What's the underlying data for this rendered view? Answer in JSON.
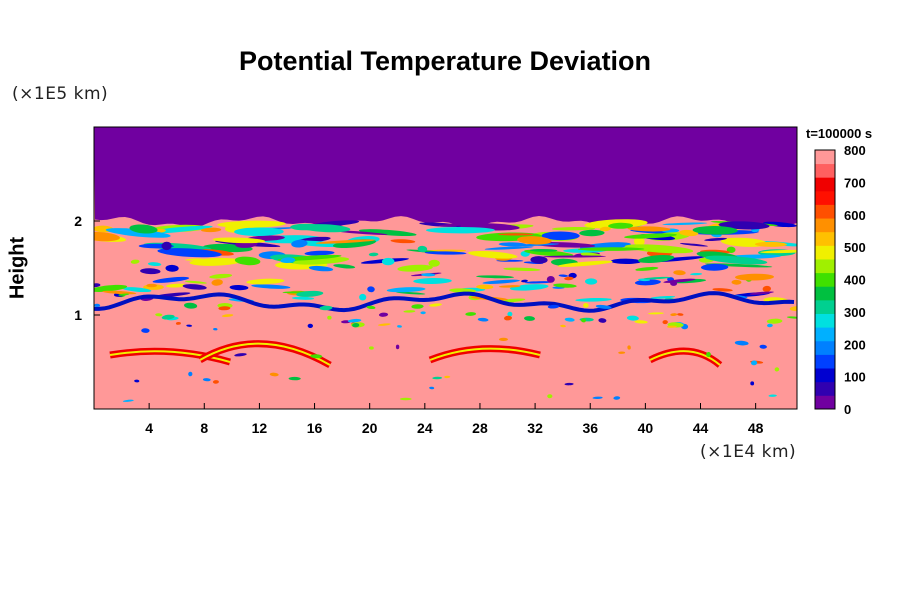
{
  "chart_data": {
    "type": "heatmap",
    "title": "Potential Temperature Deviation",
    "ylabel": "Height",
    "y_unit": "(×1E5 km)",
    "x_unit": "(×1E4 km)",
    "time_label": "t=100000 s",
    "xlim": [
      0,
      51
    ],
    "ylim": [
      0,
      3
    ],
    "x_ticks": [
      "4",
      "8",
      "12",
      "16",
      "20",
      "24",
      "28",
      "32",
      "36",
      "40",
      "44",
      "48"
    ],
    "y_ticks": [
      "1",
      "2"
    ],
    "colorbar": {
      "min": 0,
      "max": 800,
      "tick_labels": [
        "0",
        "100",
        "200",
        "300",
        "400",
        "500",
        "600",
        "700",
        "800"
      ],
      "colors": [
        "#7000a0",
        "#3000b0",
        "#0000d0",
        "#0040ff",
        "#0080ff",
        "#00b0ff",
        "#00e0e0",
        "#00d090",
        "#00c040",
        "#40e000",
        "#a0f000",
        "#f0f000",
        "#ffc000",
        "#ff9000",
        "#ff5000",
        "#ff1000",
        "#f00000",
        "#ff6060",
        "#ff9898"
      ]
    },
    "background_top": "#7000a0",
    "background_bottom": "#ff9898"
  }
}
